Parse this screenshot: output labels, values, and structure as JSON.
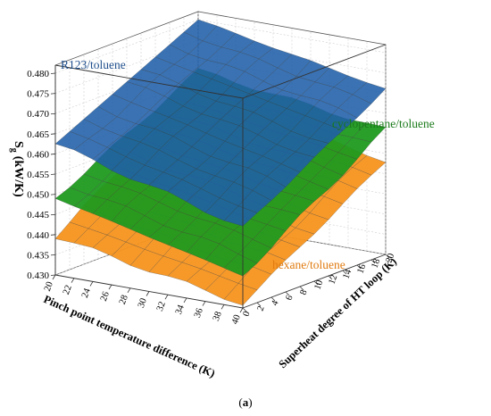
{
  "chart_data": {
    "type": "surface3d",
    "panel_label": {
      "open": "(",
      "letter": "a",
      "close": ")"
    },
    "z_axis": {
      "label_symbol": "S",
      "label_subscript": "g",
      "label_unit": "(kW/K)",
      "ticks": [
        "0.430",
        "0.435",
        "0.440",
        "0.445",
        "0.450",
        "0.455",
        "0.460",
        "0.465",
        "0.470",
        "0.475",
        "0.480"
      ],
      "range": [
        0.43,
        0.482
      ]
    },
    "x_axis": {
      "label": "Pinch point temperature difference (K)",
      "ticks": [
        "20",
        "22",
        "24",
        "26",
        "28",
        "30",
        "32",
        "34",
        "36",
        "38",
        "40"
      ],
      "range": [
        20,
        40
      ]
    },
    "y_axis": {
      "label": "Superheat degree of HT loop (K)",
      "ticks": [
        "0",
        "2",
        "4",
        "6",
        "8",
        "10",
        "12",
        "14",
        "16",
        "18",
        "20"
      ],
      "range": [
        0,
        20
      ]
    },
    "series": [
      {
        "name": "R123/toluene",
        "color": "#1f5fa8",
        "label_color": "#1f4e8c",
        "corner_values": {
          "pinch20_sh0": 0.4625,
          "pinch40_sh0": 0.45,
          "pinch20_sh20": 0.48,
          "pinch40_sh20": 0.471
        }
      },
      {
        "name": "cyclopentane/toluene",
        "color": "#1f9a1f",
        "label_color": "#1a7a1a",
        "corner_values": {
          "pinch20_sh0": 0.449,
          "pinch40_sh0": 0.438,
          "pinch20_sh20": 0.4675,
          "pinch40_sh20": 0.461
        }
      },
      {
        "name": "hexane/toluene",
        "color": "#f7941d",
        "label_color": "#e07b10",
        "corner_values": {
          "pinch20_sh0": 0.4395,
          "pinch40_sh0": 0.431,
          "pinch20_sh20": 0.463,
          "pinch40_sh20": 0.453
        }
      }
    ]
  }
}
